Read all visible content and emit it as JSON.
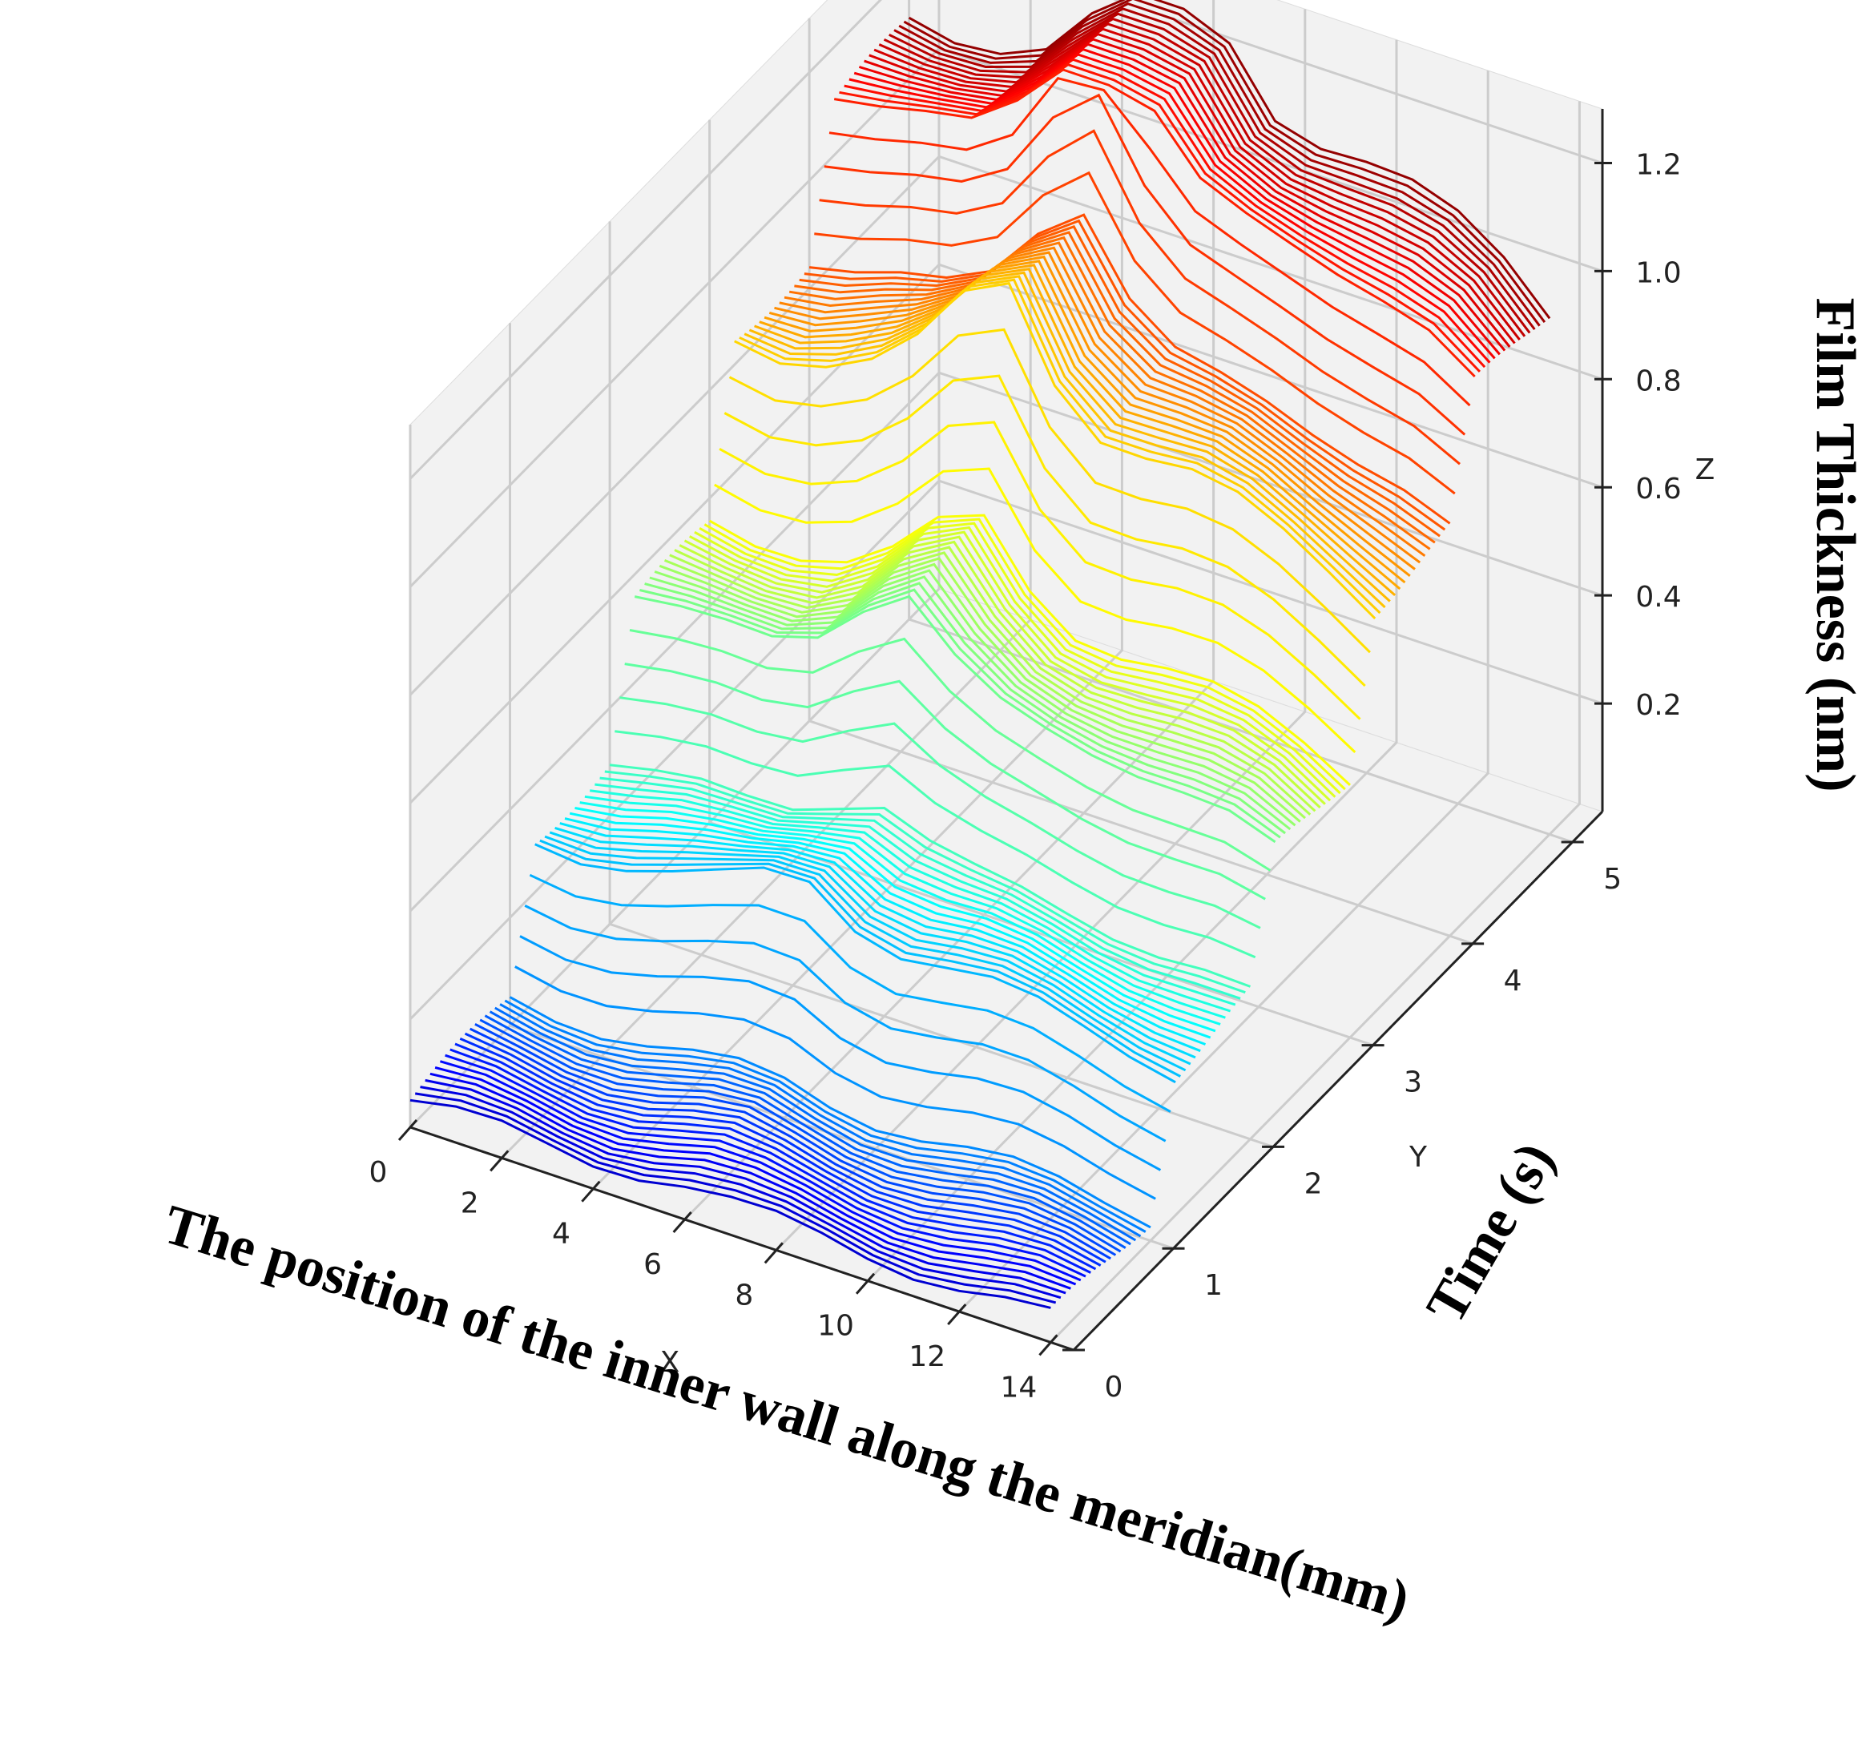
{
  "chart_data": {
    "type": "3d-line-waterfall",
    "xlabel": "The position of the inner wall along the meridian(mm)",
    "ylabel": "Time (s)",
    "zlabel": "Film Thickness (nm)",
    "x_axis_name": "X",
    "y_axis_name": "Y",
    "z_axis_name": "Z",
    "x_ticks": [
      "0",
      "2",
      "4",
      "6",
      "8",
      "10",
      "12",
      "14"
    ],
    "y_ticks": [
      "0",
      "1",
      "2",
      "3",
      "4",
      "5"
    ],
    "z_ticks": [
      "0.2",
      "0.4",
      "0.6",
      "0.8",
      "1.0",
      "1.2"
    ],
    "xlim": [
      0,
      14.5
    ],
    "ylim": [
      0,
      5.3
    ],
    "zlim": [
      0,
      1.3
    ],
    "colormap": "jet",
    "x": [
      0,
      1,
      2,
      3,
      4,
      5,
      6,
      7,
      8,
      9,
      10,
      11,
      12,
      13,
      14
    ],
    "y_start": 0,
    "y_step": 0.05,
    "y_count": 101,
    "plateau_levels": [
      {
        "t_start": 0.0,
        "t_end": 1.0,
        "z": 0.05
      },
      {
        "t_start": 1.0,
        "t_end": 2.0,
        "z": 0.3
      },
      {
        "t_start": 2.0,
        "t_end": 3.0,
        "z": 0.55
      },
      {
        "t_start": 3.0,
        "t_end": 4.0,
        "z": 0.85
      },
      {
        "t_start": 4.0,
        "t_end": 5.0,
        "z": 1.1
      }
    ],
    "profile_shape": [
      1.0,
      1.0,
      1.02,
      1.05,
      1.12,
      1.25,
      1.32,
      1.15,
      1.06,
      1.04,
      1.03,
      1.01,
      0.98,
      0.94,
      0.88
    ],
    "grid": true,
    "pane_color": "#f2f2f2"
  }
}
